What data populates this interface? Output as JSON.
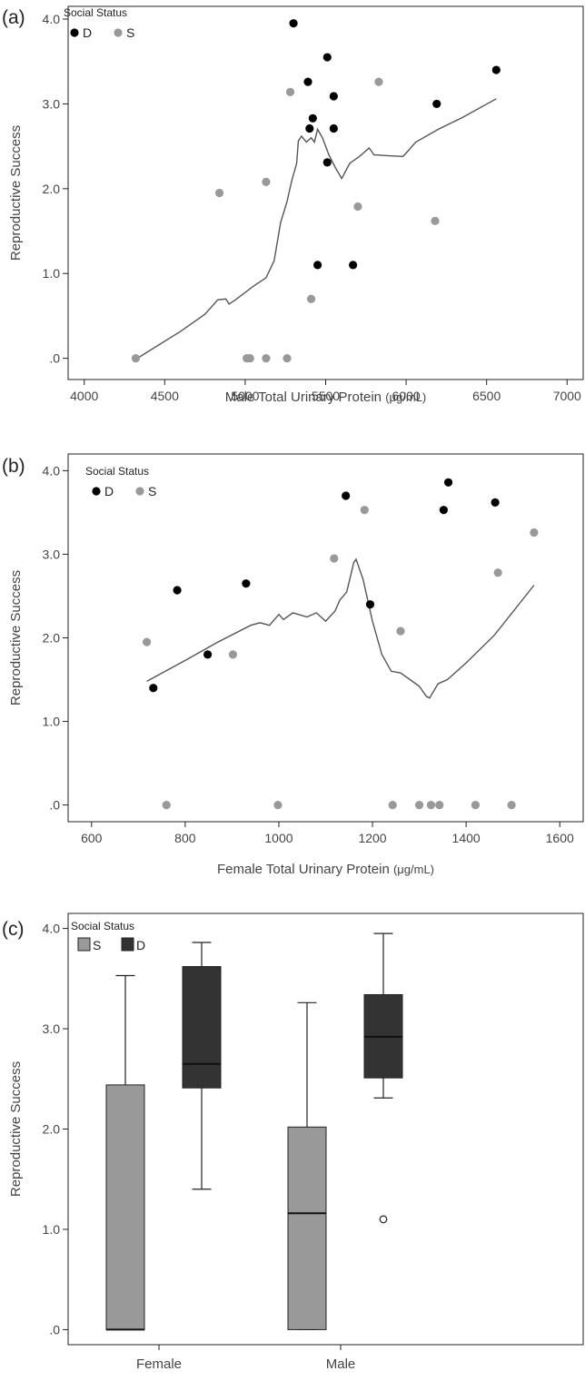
{
  "colors": {
    "D": "#000000",
    "S": "#999999",
    "box_S": "#999999",
    "box_D": "#333333",
    "fit_line": "#555555"
  },
  "chart_data": [
    {
      "panel": "(a)",
      "type": "scatter",
      "xlabel": "Male Total Urinary Protein",
      "xunit": "(μg/mL)",
      "ylabel": "Reproductive Success",
      "xlim": [
        3900,
        7100
      ],
      "ylim": [
        -0.25,
        4.15
      ],
      "xticks": [
        4000,
        4500,
        5000,
        5500,
        6000,
        6500,
        7000
      ],
      "xtick_labels": [
        "4000",
        "4500",
        "5000",
        "5500",
        "6000",
        "6500",
        "7000"
      ],
      "yticks": [
        0,
        1,
        2,
        3,
        4
      ],
      "ytick_labels": [
        ".0",
        "1.0",
        "2.0",
        "3.0",
        "4.0"
      ],
      "legend": {
        "title": "Social Status",
        "entries": [
          "D",
          "S"
        ],
        "position": "top-left"
      },
      "series": [
        {
          "name": "D",
          "points": [
            [
              5300,
              3.95
            ],
            [
              5510,
              3.55
            ],
            [
              5390,
              3.26
            ],
            [
              5550,
              3.09
            ],
            [
              6560,
              3.4
            ],
            [
              6190,
              3.0
            ],
            [
              5420,
              2.83
            ],
            [
              5400,
              2.71
            ],
            [
              5550,
              2.71
            ],
            [
              5510,
              2.31
            ],
            [
              5450,
              1.1
            ],
            [
              5670,
              1.1
            ]
          ]
        },
        {
          "name": "S",
          "points": [
            [
              4320,
              0.0
            ],
            [
              4840,
              1.95
            ],
            [
              5010,
              0.0
            ],
            [
              5030,
              0.0
            ],
            [
              5130,
              2.08
            ],
            [
              5130,
              0.0
            ],
            [
              5260,
              0.0
            ],
            [
              5280,
              3.14
            ],
            [
              5410,
              0.7
            ],
            [
              5700,
              1.79
            ],
            [
              5830,
              3.26
            ],
            [
              6180,
              1.62
            ]
          ]
        }
      ],
      "fit_line": [
        [
          4330,
          0
        ],
        [
          4600,
          0.32
        ],
        [
          4750,
          0.52
        ],
        [
          4830,
          0.69
        ],
        [
          4880,
          0.7
        ],
        [
          4900,
          0.64
        ],
        [
          4940,
          0.69
        ],
        [
          5050,
          0.85
        ],
        [
          5130,
          0.95
        ],
        [
          5180,
          1.15
        ],
        [
          5220,
          1.6
        ],
        [
          5260,
          1.85
        ],
        [
          5290,
          2.1
        ],
        [
          5320,
          2.3
        ],
        [
          5330,
          2.56
        ],
        [
          5350,
          2.62
        ],
        [
          5380,
          2.55
        ],
        [
          5410,
          2.6
        ],
        [
          5430,
          2.55
        ],
        [
          5450,
          2.7
        ],
        [
          5480,
          2.6
        ],
        [
          5520,
          2.4
        ],
        [
          5560,
          2.25
        ],
        [
          5600,
          2.12
        ],
        [
          5650,
          2.3
        ],
        [
          5710,
          2.38
        ],
        [
          5770,
          2.48
        ],
        [
          5800,
          2.4
        ],
        [
          5880,
          2.39
        ],
        [
          5980,
          2.38
        ],
        [
          6000,
          2.42
        ],
        [
          6060,
          2.55
        ],
        [
          6200,
          2.7
        ],
        [
          6350,
          2.84
        ],
        [
          6560,
          3.06
        ]
      ]
    },
    {
      "panel": "(b)",
      "type": "scatter",
      "xlabel": "Female Total Urinary Protein",
      "xunit": "(μg/mL)",
      "ylabel": "Reproductive Success",
      "xlim": [
        550,
        1650
      ],
      "ylim": [
        -0.2,
        4.2
      ],
      "xticks": [
        600,
        800,
        1000,
        1200,
        1400,
        1600
      ],
      "xtick_labels": [
        "600",
        "800",
        "1000",
        "1200",
        "1400",
        "1600"
      ],
      "yticks": [
        0,
        1,
        2,
        3,
        4
      ],
      "ytick_labels": [
        ".0",
        "1.0",
        "2.0",
        "3.0",
        "4.0"
      ],
      "legend": {
        "title": "Social Status",
        "entries": [
          "D",
          "S"
        ],
        "position": "top-left"
      },
      "series": [
        {
          "name": "D",
          "points": [
            [
              732,
              1.4
            ],
            [
              783,
              2.57
            ],
            [
              848,
              1.8
            ],
            [
              930,
              2.65
            ],
            [
              1143,
              3.7
            ],
            [
              1195,
              2.4
            ],
            [
              1352,
              3.53
            ],
            [
              1362,
              3.86
            ],
            [
              1462,
              3.62
            ]
          ]
        },
        {
          "name": "S",
          "points": [
            [
              718,
              1.95
            ],
            [
              760,
              0.0
            ],
            [
              902,
              1.8
            ],
            [
              998,
              0.0
            ],
            [
              1118,
              2.95
            ],
            [
              1183,
              3.53
            ],
            [
              1243,
              0.0
            ],
            [
              1260,
              2.08
            ],
            [
              1300,
              0.0
            ],
            [
              1325,
              0.0
            ],
            [
              1343,
              0.0
            ],
            [
              1420,
              0.0
            ],
            [
              1468,
              2.78
            ],
            [
              1497,
              0.0
            ],
            [
              1545,
              3.26
            ]
          ]
        }
      ],
      "fit_line": [
        [
          718,
          1.48
        ],
        [
          800,
          1.73
        ],
        [
          870,
          1.95
        ],
        [
          940,
          2.15
        ],
        [
          960,
          2.18
        ],
        [
          980,
          2.15
        ],
        [
          1000,
          2.28
        ],
        [
          1010,
          2.22
        ],
        [
          1030,
          2.3
        ],
        [
          1060,
          2.25
        ],
        [
          1080,
          2.3
        ],
        [
          1100,
          2.2
        ],
        [
          1120,
          2.32
        ],
        [
          1130,
          2.45
        ],
        [
          1145,
          2.55
        ],
        [
          1160,
          2.9
        ],
        [
          1165,
          2.94
        ],
        [
          1180,
          2.7
        ],
        [
          1200,
          2.2
        ],
        [
          1220,
          1.8
        ],
        [
          1240,
          1.6
        ],
        [
          1260,
          1.58
        ],
        [
          1280,
          1.5
        ],
        [
          1300,
          1.42
        ],
        [
          1315,
          1.3
        ],
        [
          1322,
          1.28
        ],
        [
          1340,
          1.45
        ],
        [
          1360,
          1.5
        ],
        [
          1400,
          1.7
        ],
        [
          1460,
          2.03
        ],
        [
          1545,
          2.63
        ]
      ]
    },
    {
      "panel": "(c)",
      "type": "box",
      "ylabel": "Reproductive Success",
      "categories": [
        "Female",
        "Male"
      ],
      "ylim": [
        -0.15,
        4.15
      ],
      "yticks": [
        0,
        1,
        2,
        3,
        4
      ],
      "ytick_labels": [
        ".0",
        "1.0",
        "2.0",
        "3.0",
        "4.0"
      ],
      "legend": {
        "title": "Social Status",
        "entries": [
          "S",
          "D"
        ],
        "position": "top-left"
      },
      "boxes": [
        {
          "category": "Female",
          "group": "S",
          "min": 0.0,
          "q1": 0.0,
          "median": 0.0,
          "q3": 2.44,
          "max": 3.53,
          "outliers": []
        },
        {
          "category": "Female",
          "group": "D",
          "min": 1.4,
          "q1": 2.41,
          "median": 2.65,
          "q3": 3.62,
          "max": 3.86,
          "outliers": []
        },
        {
          "category": "Male",
          "group": "S",
          "min": 0.0,
          "q1": 0.0,
          "median": 1.16,
          "q3": 2.02,
          "max": 3.26,
          "outliers": []
        },
        {
          "category": "Male",
          "group": "D",
          "min": 2.31,
          "q1": 2.51,
          "median": 2.92,
          "q3": 3.34,
          "max": 3.95,
          "outliers": [
            1.1
          ]
        }
      ]
    }
  ]
}
